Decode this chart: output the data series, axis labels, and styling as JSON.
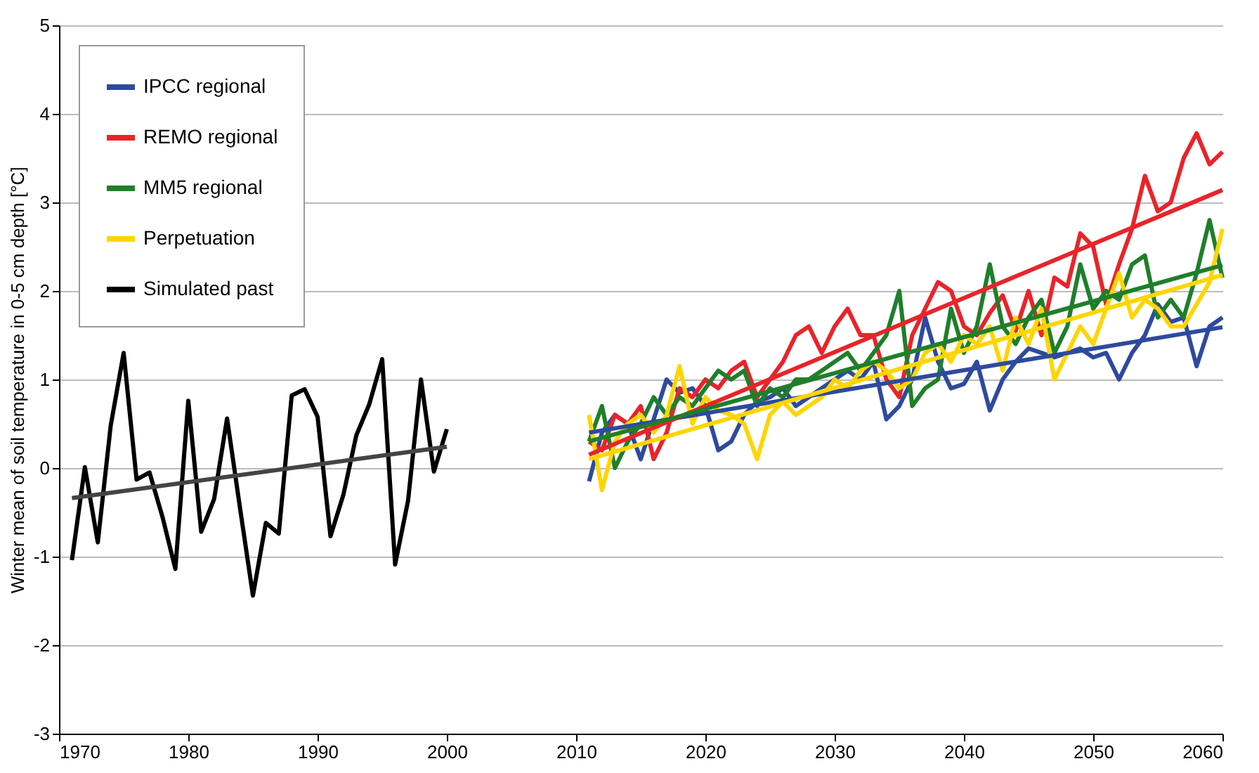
{
  "chart_data": {
    "type": "line",
    "ylabel": "Winter mean of soil temperature in 0-5 cm depth [°C]",
    "xlim": [
      1970,
      2060
    ],
    "xticks": [
      1970,
      1980,
      1990,
      2000,
      2010,
      2020,
      2030,
      2040,
      2050,
      2060
    ],
    "ylim": [
      -3,
      5
    ],
    "yticks": [
      -3,
      -2,
      -1,
      0,
      1,
      2,
      3,
      4,
      5
    ],
    "grid": "y",
    "legend": "top left",
    "line_style": "solid",
    "marker": "none",
    "series": [
      {
        "name": "IPCC regional",
        "color": "#2e4a9e",
        "x": [
          2011,
          2012,
          2013,
          2014,
          2015,
          2016,
          2017,
          2018,
          2019,
          2020,
          2021,
          2022,
          2023,
          2024,
          2025,
          2026,
          2027,
          2028,
          2029,
          2030,
          2031,
          2032,
          2033,
          2034,
          2035,
          2036,
          2037,
          2038,
          2039,
          2040,
          2041,
          2042,
          2043,
          2044,
          2045,
          2046,
          2047,
          2048,
          2049,
          2050,
          2051,
          2052,
          2053,
          2054,
          2055,
          2056,
          2057,
          2058,
          2059,
          2060
        ],
        "values": [
          -0.15,
          0.4,
          0.6,
          0.5,
          0.1,
          0.55,
          1.0,
          0.85,
          0.9,
          0.7,
          0.2,
          0.3,
          0.6,
          0.75,
          0.8,
          0.9,
          0.7,
          0.8,
          0.9,
          1.0,
          1.1,
          1.0,
          1.2,
          0.55,
          0.7,
          1.0,
          1.7,
          1.2,
          0.9,
          0.95,
          1.2,
          0.65,
          1.0,
          1.2,
          1.35,
          1.3,
          1.25,
          1.3,
          1.35,
          1.25,
          1.3,
          1.0,
          1.3,
          1.5,
          1.85,
          1.65,
          1.7,
          1.15,
          1.6,
          1.7
        ]
      },
      {
        "name": "REMO regional",
        "color": "#e8242a",
        "x": [
          2011,
          2012,
          2013,
          2014,
          2015,
          2016,
          2017,
          2018,
          2019,
          2020,
          2021,
          2022,
          2023,
          2024,
          2025,
          2026,
          2027,
          2028,
          2029,
          2030,
          2031,
          2032,
          2033,
          2034,
          2035,
          2036,
          2037,
          2038,
          2039,
          2040,
          2041,
          2042,
          2043,
          2044,
          2045,
          2046,
          2047,
          2048,
          2049,
          2050,
          2051,
          2052,
          2053,
          2054,
          2055,
          2056,
          2057,
          2058,
          2059,
          2060
        ],
        "values": [
          0.3,
          0.2,
          0.6,
          0.5,
          0.7,
          0.1,
          0.4,
          0.9,
          0.8,
          1.0,
          0.9,
          1.1,
          1.2,
          0.8,
          1.0,
          1.2,
          1.5,
          1.6,
          1.3,
          1.6,
          1.8,
          1.5,
          1.5,
          1.0,
          0.8,
          1.5,
          1.8,
          2.1,
          2.0,
          1.6,
          1.5,
          1.75,
          1.95,
          1.55,
          2.0,
          1.5,
          2.15,
          2.05,
          2.65,
          2.5,
          1.85,
          2.3,
          2.7,
          3.3,
          2.9,
          3.0,
          3.5,
          3.78,
          3.43,
          3.57
        ]
      },
      {
        "name": "MM5 regional",
        "color": "#1f7f2a",
        "x": [
          2011,
          2012,
          2013,
          2014,
          2015,
          2016,
          2017,
          2018,
          2019,
          2020,
          2021,
          2022,
          2023,
          2024,
          2025,
          2026,
          2027,
          2028,
          2029,
          2030,
          2031,
          2032,
          2033,
          2034,
          2035,
          2036,
          2037,
          2038,
          2039,
          2040,
          2041,
          2042,
          2043,
          2044,
          2045,
          2046,
          2047,
          2048,
          2049,
          2050,
          2051,
          2052,
          2053,
          2054,
          2055,
          2056,
          2057,
          2058,
          2059,
          2060
        ],
        "values": [
          0.3,
          0.7,
          0.0,
          0.3,
          0.5,
          0.8,
          0.6,
          0.8,
          0.7,
          0.9,
          1.1,
          1.0,
          1.1,
          0.7,
          0.9,
          0.8,
          1.0,
          1.0,
          1.1,
          1.2,
          1.3,
          1.1,
          1.3,
          1.5,
          2.0,
          0.7,
          0.9,
          1.0,
          1.8,
          1.3,
          1.6,
          2.3,
          1.6,
          1.4,
          1.7,
          1.9,
          1.3,
          1.6,
          2.3,
          1.8,
          2.0,
          1.9,
          2.3,
          2.4,
          1.7,
          1.9,
          1.7,
          2.2,
          2.8,
          2.15
        ]
      },
      {
        "name": "Perpetuation",
        "color": "#ffd500",
        "x": [
          2011,
          2012,
          2013,
          2014,
          2015,
          2016,
          2017,
          2018,
          2019,
          2020,
          2021,
          2022,
          2023,
          2024,
          2025,
          2026,
          2027,
          2028,
          2029,
          2030,
          2031,
          2032,
          2033,
          2034,
          2035,
          2036,
          2037,
          2038,
          2039,
          2040,
          2041,
          2042,
          2043,
          2044,
          2045,
          2046,
          2047,
          2048,
          2049,
          2050,
          2051,
          2052,
          2053,
          2054,
          2055,
          2056,
          2057,
          2058,
          2059,
          2060
        ],
        "values": [
          0.6,
          -0.25,
          0.3,
          0.5,
          0.6,
          0.4,
          0.6,
          1.15,
          0.5,
          0.8,
          0.65,
          0.6,
          0.5,
          0.1,
          0.6,
          0.75,
          0.6,
          0.7,
          0.8,
          1.0,
          0.9,
          1.1,
          1.2,
          1.1,
          0.9,
          1.0,
          1.3,
          1.4,
          1.2,
          1.5,
          1.4,
          1.6,
          1.1,
          1.7,
          1.4,
          1.8,
          1.0,
          1.3,
          1.6,
          1.4,
          1.8,
          2.2,
          1.7,
          1.9,
          1.8,
          1.6,
          1.6,
          1.85,
          2.1,
          2.7
        ]
      },
      {
        "name": "Simulated past",
        "color": "#000000",
        "x": [
          1971,
          1972,
          1973,
          1974,
          1975,
          1976,
          1977,
          1978,
          1979,
          1980,
          1981,
          1982,
          1983,
          1984,
          1985,
          1986,
          1987,
          1988,
          1989,
          1990,
          1991,
          1992,
          1993,
          1994,
          1995,
          1996,
          1997,
          1998,
          1999,
          2000
        ],
        "values": [
          -1.04,
          0.01,
          -0.84,
          0.48,
          1.3,
          -0.13,
          -0.05,
          -0.55,
          -1.14,
          0.76,
          -0.72,
          -0.35,
          0.56,
          -0.45,
          -1.44,
          -0.62,
          -0.74,
          0.82,
          0.89,
          0.58,
          -0.77,
          -0.3,
          0.37,
          0.72,
          1.23,
          -1.09,
          -0.37,
          1.0,
          -0.04,
          0.44
        ]
      },
      {
        "color": "#2e4a9e",
        "x": [
          2011,
          2060
        ],
        "values": [
          0.4,
          1.59
        ]
      },
      {
        "color": "#e8242a",
        "x": [
          2011,
          2060
        ],
        "values": [
          0.15,
          3.14
        ]
      },
      {
        "color": "#1f7f2a",
        "x": [
          2011,
          2060
        ],
        "values": [
          0.3,
          2.29
        ]
      },
      {
        "color": "#ffd500",
        "x": [
          2011,
          2060
        ],
        "values": [
          0.1,
          2.18
        ]
      },
      {
        "color": "#444444",
        "x": [
          1971,
          2000
        ],
        "values": [
          -0.34,
          0.24
        ]
      }
    ]
  }
}
